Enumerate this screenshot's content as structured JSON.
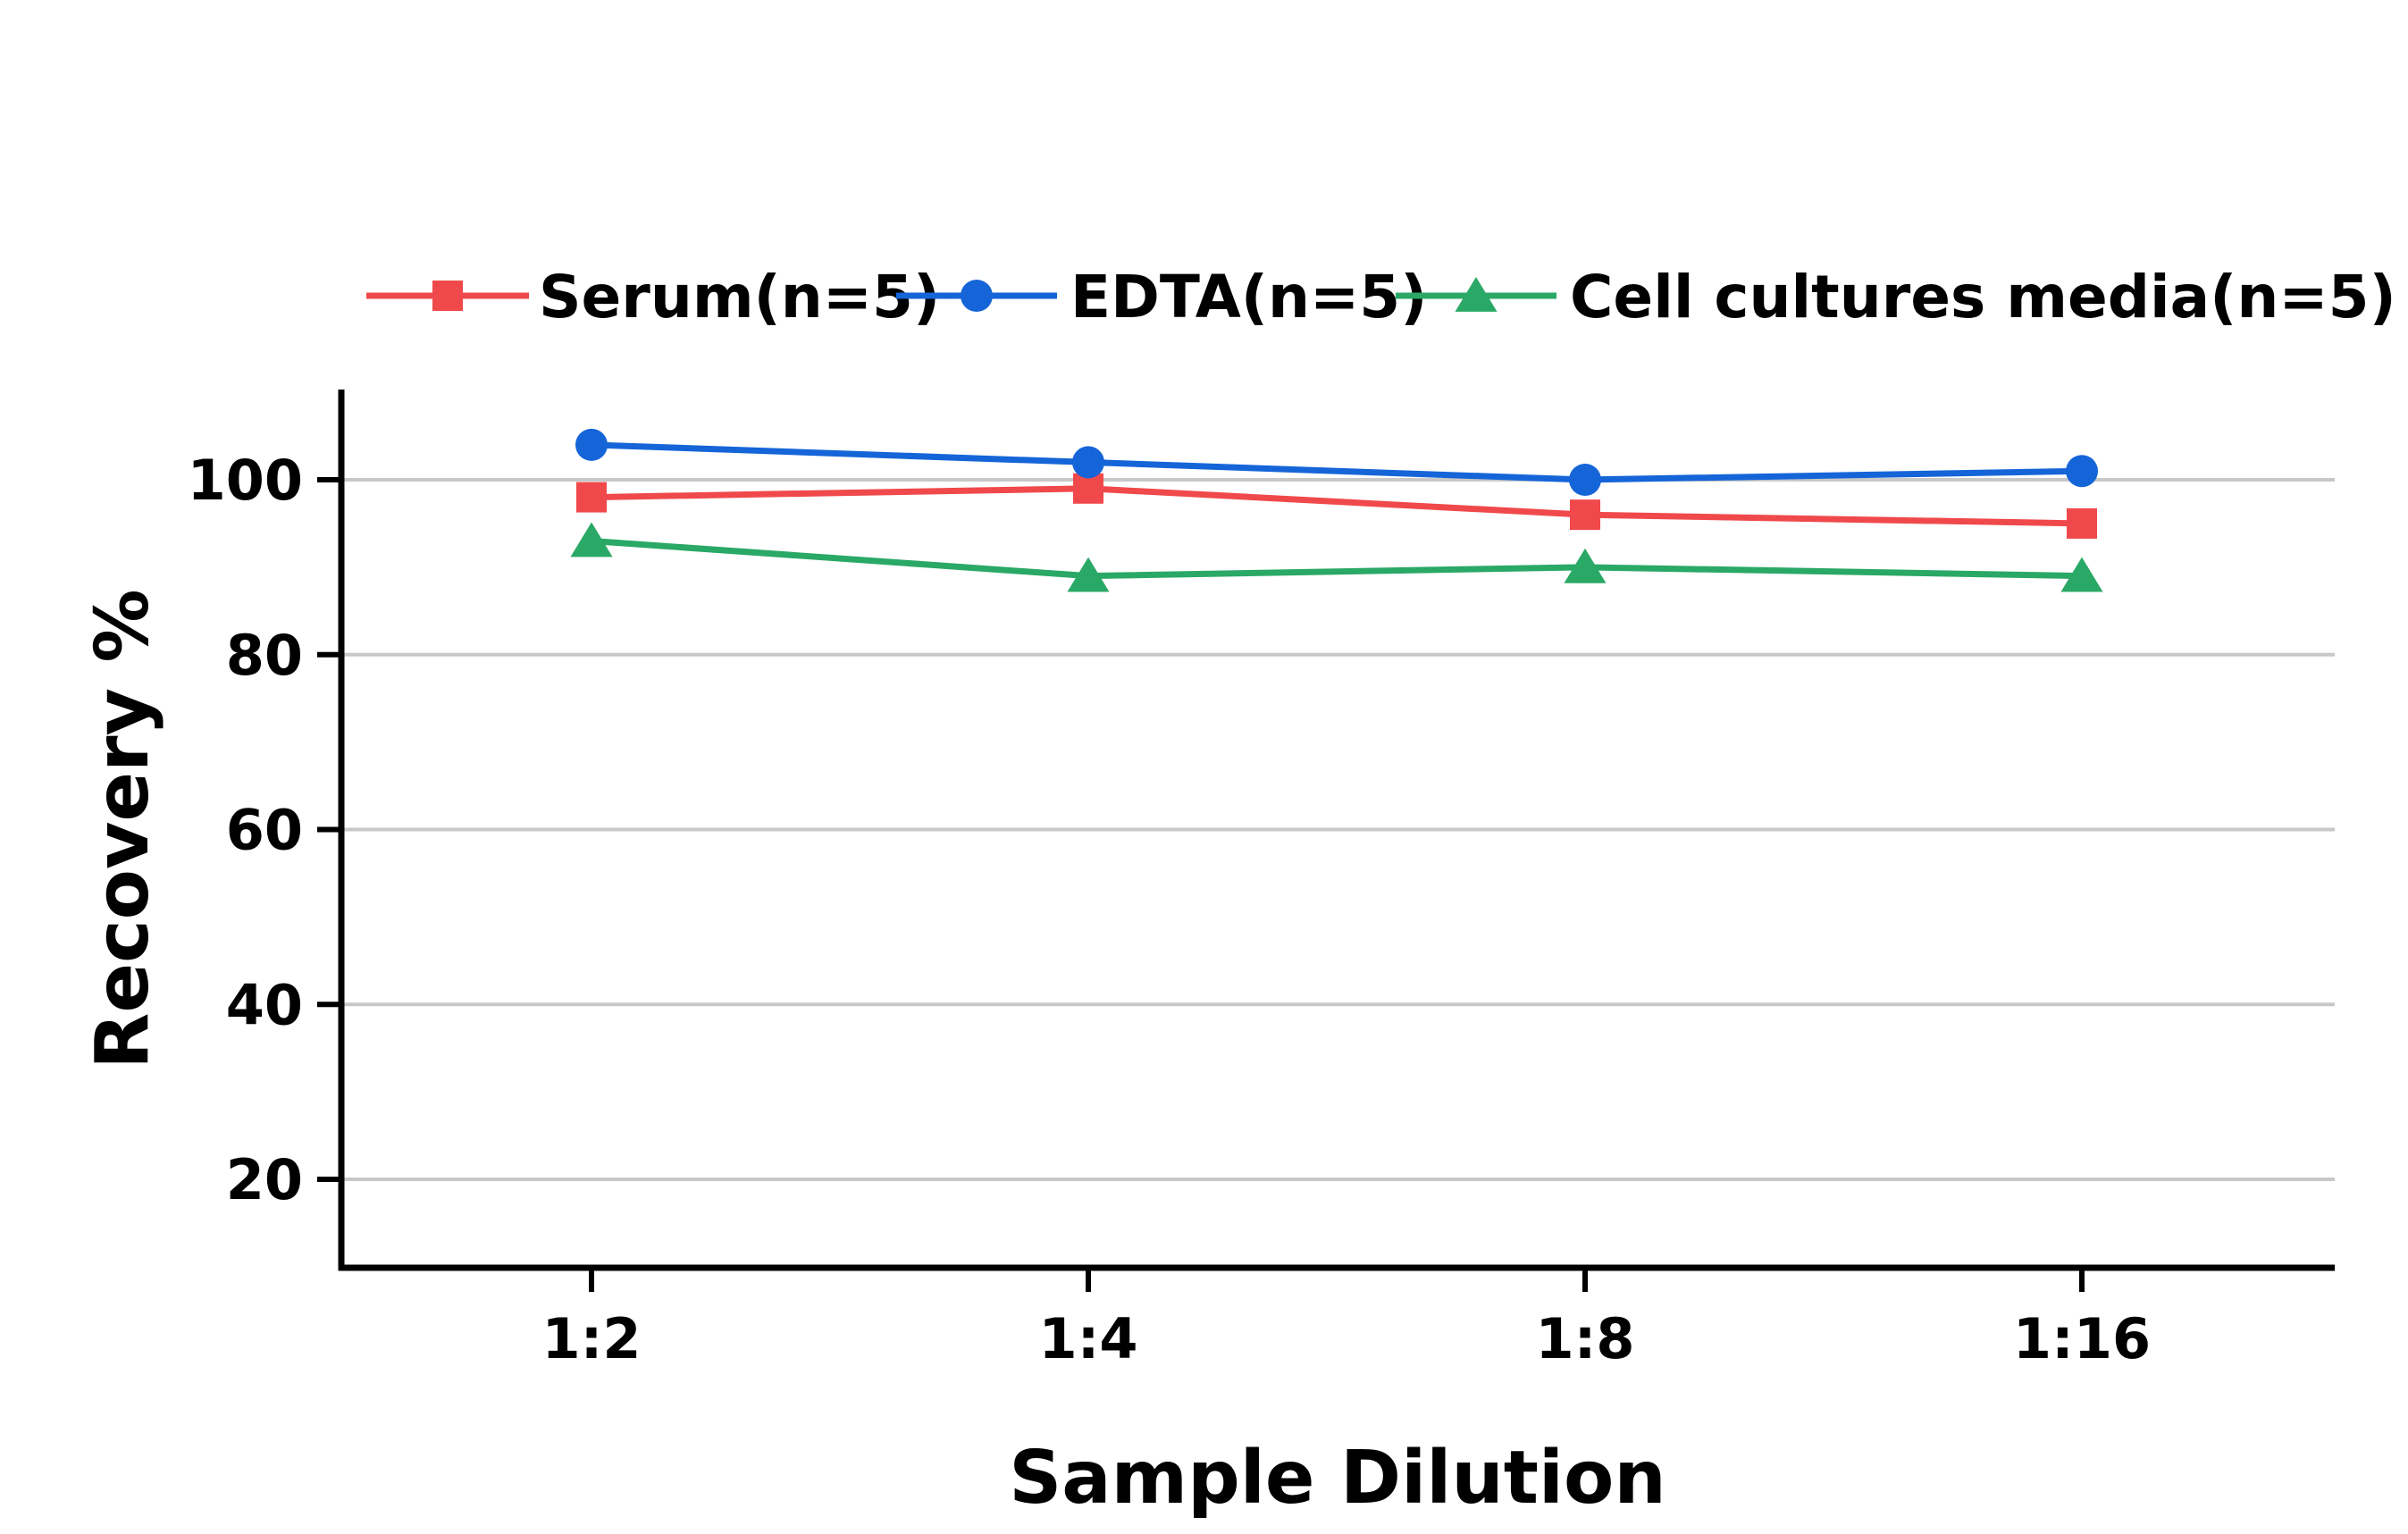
{
  "chart_data": {
    "type": "line",
    "title": "",
    "xlabel": "Sample Dilution",
    "ylabel": "Recovery %",
    "categories": [
      "1:2",
      "1:4",
      "1:8",
      "1:16"
    ],
    "ylim": [
      10,
      110
    ],
    "yticks": [
      20,
      40,
      60,
      80,
      100
    ],
    "grid": "horizontal",
    "legend_position": "top",
    "series": [
      {
        "name": "Serum(n=5)",
        "values": [
          98,
          99,
          96,
          95
        ],
        "color": "#f0494b",
        "marker": "square"
      },
      {
        "name": "EDTA(n=5)",
        "values": [
          104,
          102,
          100,
          101
        ],
        "color": "#1565d8",
        "marker": "circle"
      },
      {
        "name": "Cell cultures media(n=5)",
        "values": [
          93,
          89,
          90,
          89
        ],
        "color": "#2aa866",
        "marker": "triangle"
      }
    ]
  }
}
